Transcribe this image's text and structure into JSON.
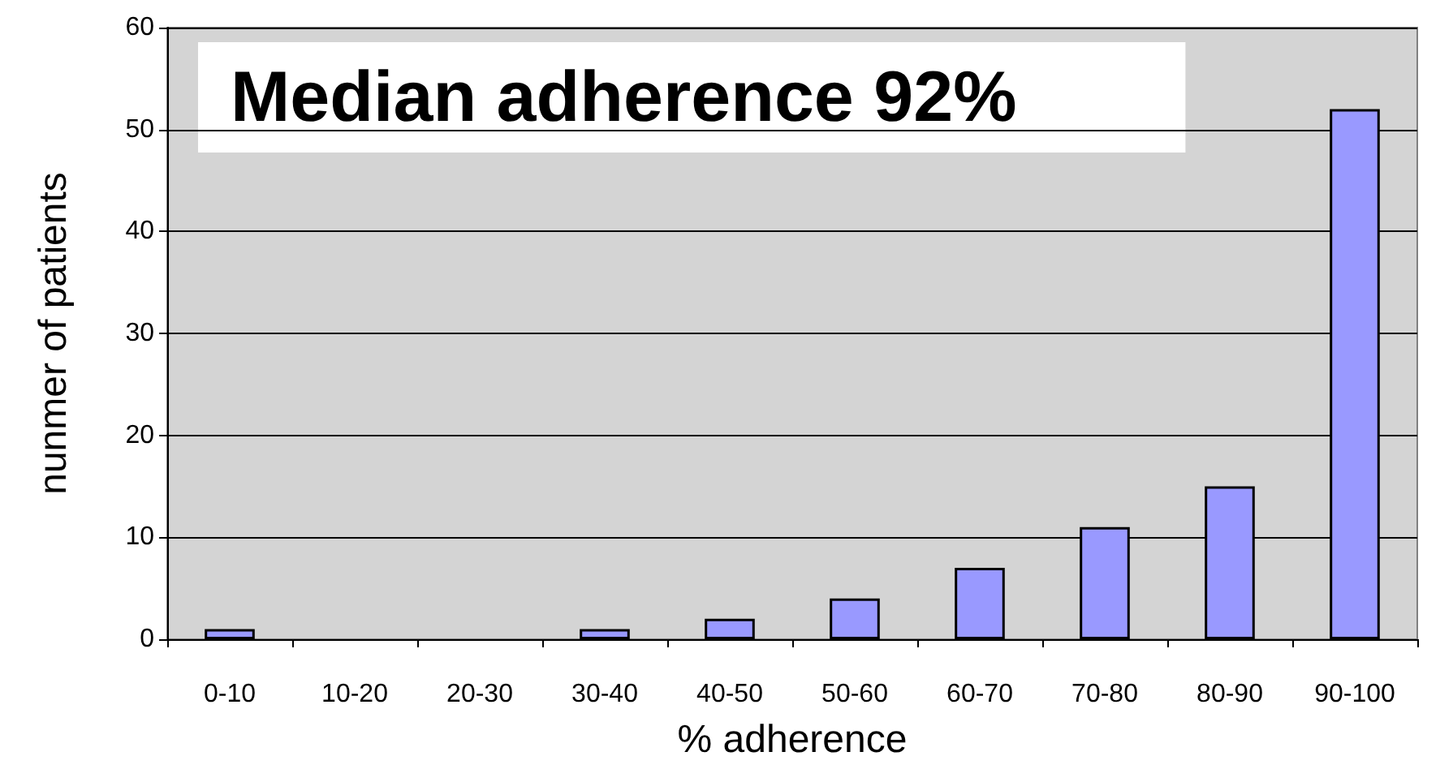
{
  "chart_data": {
    "type": "bar",
    "xlabel": "% adherence",
    "ylabel": "nunmer of patients",
    "annotations": [
      "Median adherence 92%"
    ],
    "categories": [
      "0-10",
      "10-20",
      "20-30",
      "30-40",
      "40-50",
      "50-60",
      "60-70",
      "70-80",
      "80-90",
      "90-100"
    ],
    "values": [
      1,
      0,
      0,
      1,
      2,
      4,
      7,
      11,
      15,
      52
    ],
    "color": "#9999ff",
    "ylim": [
      0,
      60
    ],
    "yticks": [
      0,
      10,
      20,
      30,
      40,
      50,
      60
    ],
    "grid": "y"
  }
}
